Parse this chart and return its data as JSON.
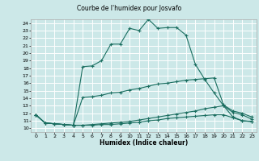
{
  "title": "",
  "xlabel": "Humidex (Indice chaleur)",
  "xlim": [
    -0.5,
    23.5
  ],
  "ylim": [
    9.5,
    24.5
  ],
  "yticks": [
    10,
    11,
    12,
    13,
    14,
    15,
    16,
    17,
    18,
    19,
    20,
    21,
    22,
    23,
    24
  ],
  "xticks": [
    0,
    1,
    2,
    3,
    4,
    5,
    6,
    7,
    8,
    9,
    10,
    11,
    12,
    13,
    14,
    15,
    16,
    17,
    18,
    19,
    20,
    21,
    22,
    23
  ],
  "bg_color": "#cce8e8",
  "line_color": "#1a6e60",
  "grid_color": "#ffffff",
  "line1_x": [
    0,
    1,
    2,
    3,
    4,
    5,
    6,
    7,
    8,
    9,
    10,
    11,
    12,
    13,
    14,
    15,
    16,
    17,
    18,
    19,
    20,
    21,
    22,
    23
  ],
  "line1_y": [
    11.8,
    10.7,
    10.6,
    10.5,
    10.4,
    18.2,
    18.3,
    19.0,
    21.2,
    21.2,
    23.3,
    23.0,
    24.5,
    23.3,
    23.4,
    23.4,
    22.4,
    18.5,
    16.5,
    14.7,
    13.0,
    12.1,
    11.8,
    11.2
  ],
  "line2_x": [
    0,
    1,
    2,
    3,
    4,
    5,
    6,
    7,
    8,
    9,
    10,
    11,
    12,
    13,
    14,
    15,
    16,
    17,
    18,
    19,
    20,
    21,
    22,
    23
  ],
  "line2_y": [
    11.8,
    10.7,
    10.6,
    10.5,
    10.4,
    10.4,
    10.5,
    10.6,
    10.7,
    10.8,
    10.9,
    11.1,
    11.3,
    11.5,
    11.7,
    11.9,
    12.1,
    12.3,
    12.6,
    12.8,
    13.0,
    11.5,
    11.0,
    10.9
  ],
  "line3_x": [
    0,
    1,
    2,
    3,
    4,
    5,
    6,
    7,
    8,
    9,
    10,
    11,
    12,
    13,
    14,
    15,
    16,
    17,
    18,
    19,
    20,
    21,
    22,
    23
  ],
  "line3_y": [
    11.8,
    10.7,
    10.6,
    10.5,
    10.4,
    10.4,
    10.4,
    10.5,
    10.5,
    10.6,
    10.7,
    10.8,
    11.0,
    11.1,
    11.3,
    11.4,
    11.5,
    11.6,
    11.7,
    11.8,
    11.8,
    11.4,
    11.0,
    10.9
  ],
  "line4_x": [
    0,
    1,
    2,
    3,
    4,
    5,
    6,
    7,
    8,
    9,
    10,
    11,
    12,
    13,
    14,
    15,
    16,
    17,
    18,
    19,
    20,
    21,
    22,
    23
  ],
  "line4_y": [
    11.8,
    10.7,
    10.6,
    10.5,
    10.4,
    14.1,
    14.2,
    14.4,
    14.7,
    14.8,
    15.1,
    15.3,
    15.6,
    15.9,
    16.0,
    16.2,
    16.4,
    16.5,
    16.6,
    16.7,
    13.1,
    12.3,
    12.0,
    11.5
  ],
  "title_text": "Courbe de l'humidex pour Josvafo"
}
